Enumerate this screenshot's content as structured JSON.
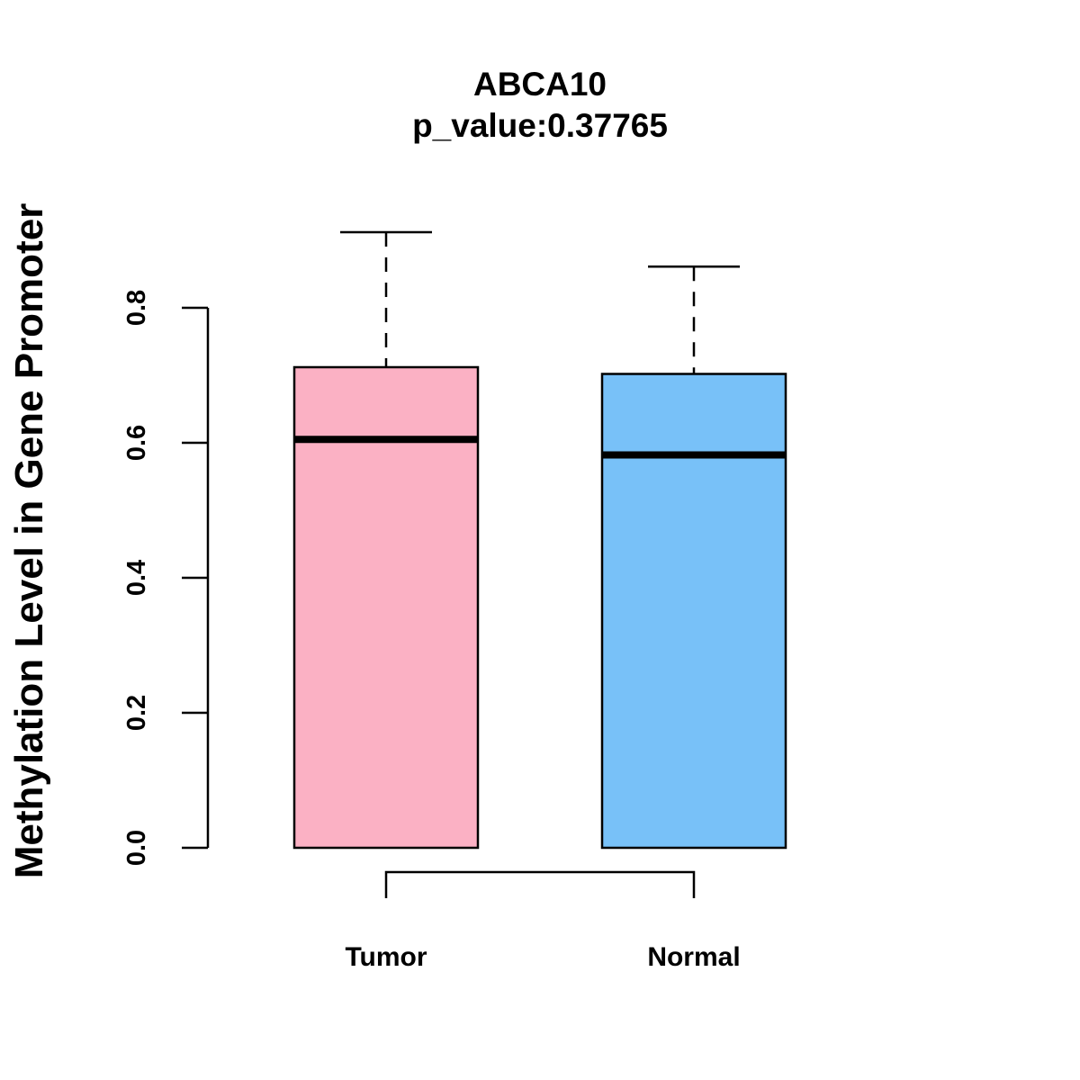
{
  "chart_data": {
    "type": "box",
    "title": "ABCA10",
    "subtitle": "p_value:0.37765",
    "ylabel": "Methylation Level in Gene Promoter",
    "xlabel": "",
    "yticks": [
      0.0,
      0.2,
      0.4,
      0.6,
      0.8
    ],
    "ytick_labels": [
      "0.0",
      "0.2",
      "0.4",
      "0.6",
      "0.8"
    ],
    "categories": [
      "Tumor",
      "Normal"
    ],
    "series": [
      {
        "category": "Tumor",
        "color": "#fbb1c4",
        "box_low": 0.0,
        "median": 0.605,
        "q3": 0.712,
        "whisker_high": 0.912
      },
      {
        "category": "Normal",
        "color": "#78c1f8",
        "box_low": 0.0,
        "median": 0.582,
        "q3": 0.702,
        "whisker_high": 0.861
      }
    ],
    "comparison_bracket": [
      "Tumor",
      "Normal"
    ],
    "grid": false,
    "legend": "none"
  }
}
